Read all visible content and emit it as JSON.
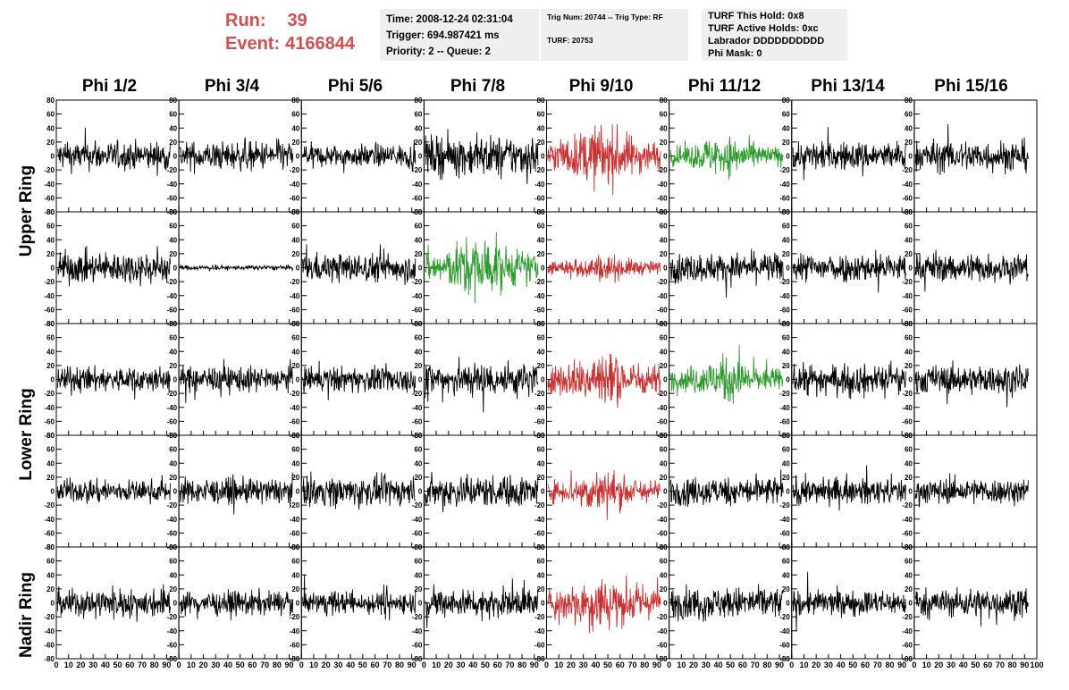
{
  "run": {
    "run_label": "Run:",
    "run_value": "39",
    "event_label": "Event:",
    "event_value": "4166844"
  },
  "info_panel_1": {
    "time": "Time: 2008-12-24 02:31:04",
    "trigger": "Trigger: 694.987421 ms",
    "priority": "Priority: 2 -- Queue: 2"
  },
  "info_panel_2": {
    "trig_line": "Trig Num: 20744 -- Trig Type: RF",
    "turf_line": "TURF: 20753"
  },
  "info_panel_3": {
    "this_hold": "TURF This Hold: 0x8",
    "active_holds": "TURF Active Holds: 0xc",
    "labrador": "Labrador DDDDDDDDDD",
    "phi_mask": "Phi Mask: 0"
  },
  "phi_headers": [
    "Phi 1/2",
    "Phi 3/4",
    "Phi 5/6",
    "Phi 7/8",
    "Phi 9/10",
    "Phi 11/12",
    "Phi 13/14",
    "Phi 15/16"
  ],
  "ring_labels": {
    "upper": "Upper Ring",
    "lower": "Lower Ring",
    "nadir": "Nadir Ring"
  },
  "colors": {
    "title_red": "#d05050",
    "trace_black": "#000000",
    "trace_red": "#c83232",
    "trace_green": "#2e9a2e",
    "panel_gray": "#efefef"
  },
  "chart_data": {
    "type": "line",
    "rows": 5,
    "columns": 8,
    "ylim": [
      -80,
      80
    ],
    "xlim": [
      0,
      100
    ],
    "y_ticks": [
      "80",
      "60",
      "40",
      "20",
      "0",
      "-20",
      "-40",
      "-60",
      "-80"
    ],
    "x_ticks": [
      "0",
      "10",
      "20",
      "30",
      "40",
      "50",
      "60",
      "70",
      "80",
      "90",
      "100"
    ],
    "trace_colors": [
      [
        "black",
        "black",
        "black",
        "black",
        "red",
        "green",
        "black",
        "black"
      ],
      [
        "black",
        "black",
        "black",
        "green",
        "red",
        "black",
        "black",
        "black"
      ],
      [
        "black",
        "black",
        "black",
        "black",
        "red",
        "green",
        "black",
        "black"
      ],
      [
        "black",
        "black",
        "black",
        "black",
        "red",
        "black",
        "black",
        "black"
      ],
      [
        "black",
        "black",
        "black",
        "black",
        "red",
        "black",
        "black",
        "black"
      ]
    ],
    "amplitudes": [
      [
        18,
        18,
        14,
        25,
        35,
        22,
        18,
        20
      ],
      [
        20,
        3,
        18,
        35,
        15,
        18,
        18,
        18
      ],
      [
        16,
        16,
        16,
        22,
        32,
        25,
        18,
        18
      ],
      [
        14,
        16,
        18,
        20,
        24,
        18,
        16,
        16
      ],
      [
        18,
        15,
        14,
        18,
        32,
        20,
        16,
        18
      ]
    ]
  }
}
